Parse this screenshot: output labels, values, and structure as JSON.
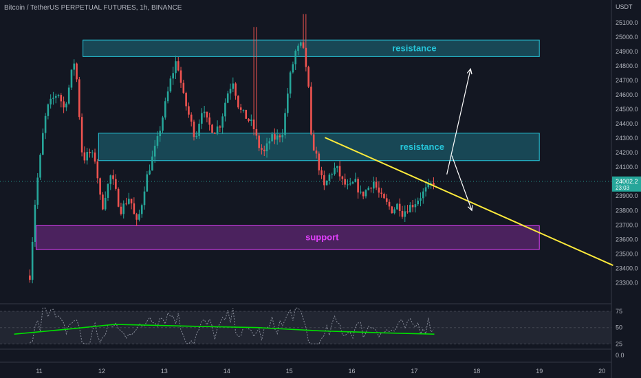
{
  "header": {
    "title": "Bitcoin / TetherUS PERPETUAL FUTURES, 1h, BINANCE"
  },
  "price_axis": {
    "currency": "USDT",
    "ticks": [
      "25100.0",
      "25000.0",
      "24900.0",
      "24800.0",
      "24700.0",
      "24600.0",
      "24500.0",
      "24400.0",
      "24300.0",
      "24200.0",
      "24100.0",
      "24000.0",
      "23900.0",
      "23800.0",
      "23700.0",
      "23600.0",
      "23500.0",
      "23400.0",
      "23300.0"
    ],
    "last_price": "24002.2",
    "countdown": "23:03"
  },
  "rsi_axis": {
    "ticks": [
      "75",
      "50",
      "25"
    ]
  },
  "extra_axis": {
    "ticks": [
      "0.0"
    ]
  },
  "time_axis": {
    "ticks": [
      "11",
      "12",
      "13",
      "14",
      "15",
      "16",
      "17",
      "18",
      "19",
      "20"
    ]
  },
  "zones": {
    "resistance_top": {
      "label": "resistance",
      "color": "#26c6da"
    },
    "resistance_mid": {
      "label": "resistance",
      "color": "#26c6da"
    },
    "support": {
      "label": "support",
      "color": "#e040fb"
    }
  },
  "colors": {
    "up": "#26a69a",
    "down": "#ef5350",
    "trendline": "#ffeb3b",
    "rsi_ma": "#00e000",
    "background": "#131722"
  },
  "chart_data": {
    "type": "candlestick",
    "title": "Bitcoin / TetherUS PERPETUAL FUTURES, 1h, BINANCE",
    "x_range": [
      10.6,
      20.2
    ],
    "ylim": [
      23300,
      25200
    ],
    "path_days": [
      10.85,
      10.9,
      10.95,
      11.0,
      11.05,
      11.12,
      11.2,
      11.3,
      11.4,
      11.5,
      11.55,
      11.62,
      11.66,
      11.7,
      11.8,
      11.9,
      12.0,
      12.05,
      12.15,
      12.3,
      12.45,
      12.55,
      12.62,
      12.7,
      12.8,
      12.9,
      13.0,
      13.1,
      13.2,
      13.3,
      13.4,
      13.5,
      13.6,
      13.7,
      13.8,
      13.9,
      14.0,
      14.1,
      14.2,
      14.3,
      14.4,
      14.45,
      14.5,
      14.6,
      14.7,
      14.8,
      14.9,
      15.0,
      15.1,
      15.2,
      15.25,
      15.3,
      15.35,
      15.45,
      15.55,
      15.65,
      15.75,
      15.85,
      15.95,
      16.05,
      16.15,
      16.25,
      16.35,
      16.45,
      16.55,
      16.65,
      16.75,
      16.8,
      16.9,
      17.0,
      17.1,
      17.2,
      17.32
    ],
    "path_prices": [
      23350,
      23650,
      23950,
      24100,
      24300,
      24500,
      24560,
      24620,
      24500,
      24700,
      24850,
      24650,
      24300,
      24150,
      24200,
      24150,
      23800,
      23900,
      24050,
      23800,
      23900,
      23700,
      23800,
      24000,
      24150,
      24300,
      24500,
      24700,
      24850,
      24600,
      24450,
      24300,
      24500,
      24400,
      24350,
      24400,
      24600,
      24700,
      24500,
      24450,
      24400,
      24350,
      24250,
      24200,
      24300,
      24300,
      24350,
      24700,
      24900,
      24950,
      24850,
      24700,
      24300,
      24150,
      23950,
      24050,
      24100,
      24000,
      23950,
      24000,
      23900,
      23950,
      24000,
      23900,
      23850,
      23800,
      23850,
      23780,
      23820,
      23850,
      23900,
      23950,
      24002
    ],
    "zones": [
      {
        "name": "resistance",
        "x": [
          11.7,
          19.0
        ],
        "y": [
          24865,
          24980
        ]
      },
      {
        "name": "resistance",
        "x": [
          11.95,
          19.0
        ],
        "y": [
          24145,
          24335
        ]
      },
      {
        "name": "support",
        "x": [
          10.95,
          19.0
        ],
        "y": [
          23530,
          23695
        ]
      }
    ],
    "trendline": {
      "points": [
        [
          15.57,
          24305
        ],
        [
          20.18,
          23420
        ]
      ]
    },
    "arrows": [
      {
        "from": [
          17.52,
          24050
        ],
        "to": [
          17.9,
          24780
        ]
      },
      {
        "from": [
          17.6,
          24180
        ],
        "to": [
          17.92,
          23800
        ]
      }
    ],
    "last_price": 24002.2,
    "rsi": {
      "levels": [
        75,
        50,
        25
      ],
      "ma_end": 40
    }
  }
}
